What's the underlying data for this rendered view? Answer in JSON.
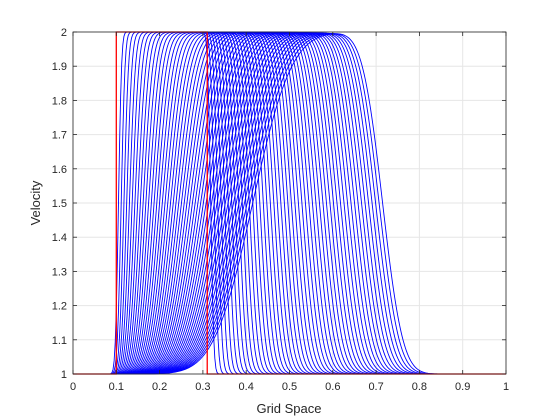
{
  "chart_data": {
    "type": "line",
    "title": "",
    "xlabel": "Grid Space",
    "ylabel": "Velocity",
    "xlim": [
      0,
      1
    ],
    "ylim": [
      1,
      2
    ],
    "xticks": [
      "0",
      "0.1",
      "0.2",
      "0.3",
      "0.4",
      "0.5",
      "0.6",
      "0.7",
      "0.8",
      "0.9",
      "1"
    ],
    "yticks": [
      "1",
      "1.1",
      "1.2",
      "1.3",
      "1.4",
      "1.5",
      "1.6",
      "1.7",
      "1.8",
      "1.9",
      "2"
    ],
    "grid": true,
    "legend": "none",
    "colors": {
      "initial": "#ff0000",
      "evolved": "#0000ff",
      "grid": "#e6e6e6",
      "axis": "#262626"
    },
    "series": [
      {
        "role": "initial-condition",
        "color": "#ff0000",
        "x": [
          0,
          0.1,
          0.1,
          0.31,
          0.31,
          1
        ],
        "y": [
          1,
          1,
          2,
          2,
          1,
          1
        ]
      }
    ],
    "evolved_profiles": {
      "color": "#0000ff",
      "count": 50,
      "rise_center_start": 0.105,
      "rise_center_end": 0.415,
      "rise_width_start": 0.008,
      "rise_width_end": 0.1,
      "fall_center_start": 0.318,
      "fall_center_end": 0.715,
      "fall_width_start": 0.008,
      "fall_width_end": 0.052,
      "peak": 2,
      "base": 1
    }
  }
}
